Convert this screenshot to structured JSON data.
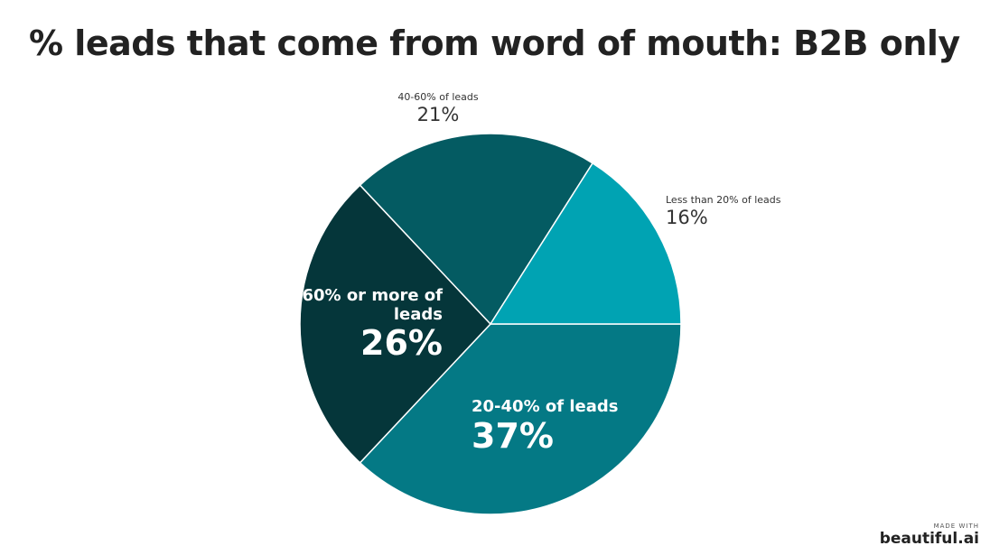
{
  "chart_data": {
    "type": "pie",
    "title": "% leads that come from word of mouth: B2B only",
    "categories": [
      "20-40% of leads",
      "60% or more of leads",
      "40-60% of leads",
      "Less than 20% of leads"
    ],
    "values": [
      37,
      26,
      21,
      16
    ],
    "value_labels": [
      "37%",
      "26%",
      "21%",
      "16%"
    ],
    "colors": [
      "#047985",
      "#05363a",
      "#045b62",
      "#00a3b3"
    ]
  },
  "branding": {
    "made_with": "MADE WITH",
    "name": "beautiful.ai"
  }
}
